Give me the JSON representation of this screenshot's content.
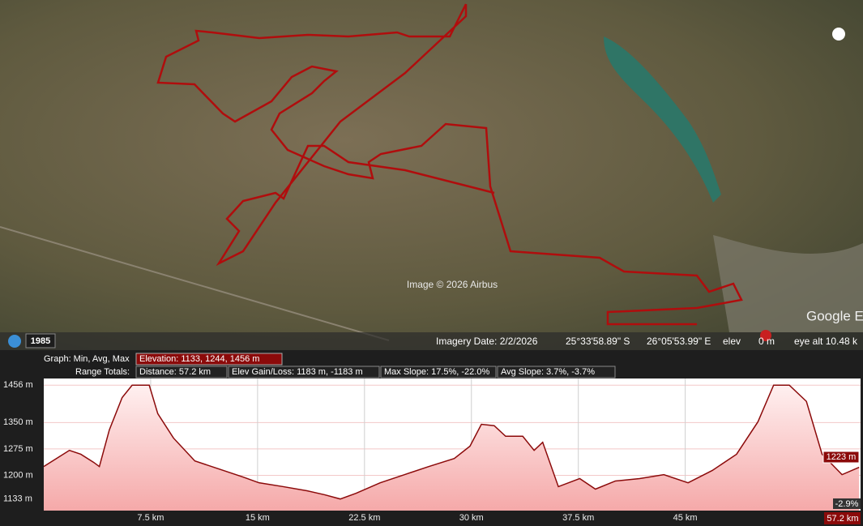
{
  "map": {
    "clock_year": "1985",
    "credit": "Image © 2026 Airbus",
    "imagery_date": "Imagery Date: 2/2/2026",
    "lat": "25°33'58.89\" S",
    "lon": "26°05'53.99\" E",
    "elev_label": "elev",
    "elev_value": "0 m",
    "eye_alt": "eye alt  10.48 k",
    "brand": "Google Earth"
  },
  "stats": {
    "graph_label": "Graph: Min, Avg, Max",
    "elevation": "Elevation: 1133, 1244, 1456 m",
    "range_label": "Range Totals:",
    "distance": "Distance: 57.2 km",
    "gain_loss": "Elev Gain/Loss: 1183 m, -1183 m",
    "max_slope": "Max Slope: 17.5%, -22.0%",
    "avg_slope": "Avg Slope: 3.7%, -3.7%"
  },
  "profile": {
    "type": "area",
    "color": "#8b0a0a",
    "x": [
      0,
      0.9,
      1.8,
      2.6,
      3.5,
      3.9,
      4.6,
      5.5,
      6.2,
      7.4,
      8.0,
      9.1,
      10.6,
      12.3,
      14.0,
      15.1,
      16.8,
      18.5,
      19.7,
      20.8,
      21.9,
      23.6,
      25.3,
      27.0,
      28.8,
      29.9,
      30.7,
      31.6,
      32.4,
      33.6,
      34.4,
      35.0,
      36.1,
      37.6,
      38.7,
      40.1,
      41.8,
      43.5,
      45.2,
      46.9,
      48.6,
      50.1,
      51.2,
      52.3,
      53.5,
      54.6,
      56.0,
      57.2
    ],
    "values": [
      1225,
      1248,
      1271,
      1260,
      1237,
      1225,
      1329,
      1421,
      1456,
      1456,
      1375,
      1306,
      1241,
      1218,
      1195,
      1179,
      1168,
      1156,
      1145,
      1133,
      1149,
      1179,
      1202,
      1225,
      1248,
      1283,
      1345,
      1341,
      1311,
      1311,
      1271,
      1294,
      1168,
      1191,
      1161,
      1184,
      1191,
      1202,
      1179,
      1214,
      1260,
      1352,
      1456,
      1456,
      1410,
      1260,
      1202,
      1223
    ],
    "xlim": [
      0,
      57.3
    ],
    "ylim": [
      1100,
      1475
    ],
    "xticks": [
      {
        "value": 7.5,
        "label": "7.5 km"
      },
      {
        "value": 15,
        "label": "15 km"
      },
      {
        "value": 22.5,
        "label": "22.5 km"
      },
      {
        "value": 30,
        "label": "30 km"
      },
      {
        "value": 37.5,
        "label": "37.5 km"
      },
      {
        "value": 45,
        "label": "45 km"
      }
    ],
    "yticks": [
      {
        "value": 1456,
        "label": "1456 m"
      },
      {
        "value": 1350,
        "label": "1350 m"
      },
      {
        "value": 1275,
        "label": "1275 m"
      },
      {
        "value": 1200,
        "label": "1200 m"
      },
      {
        "value": 1133,
        "label": "1133 m"
      }
    ],
    "cursor_elev": "1223 m",
    "cursor_slope": "-2.9%",
    "cursor_dist": "57.2 km"
  }
}
